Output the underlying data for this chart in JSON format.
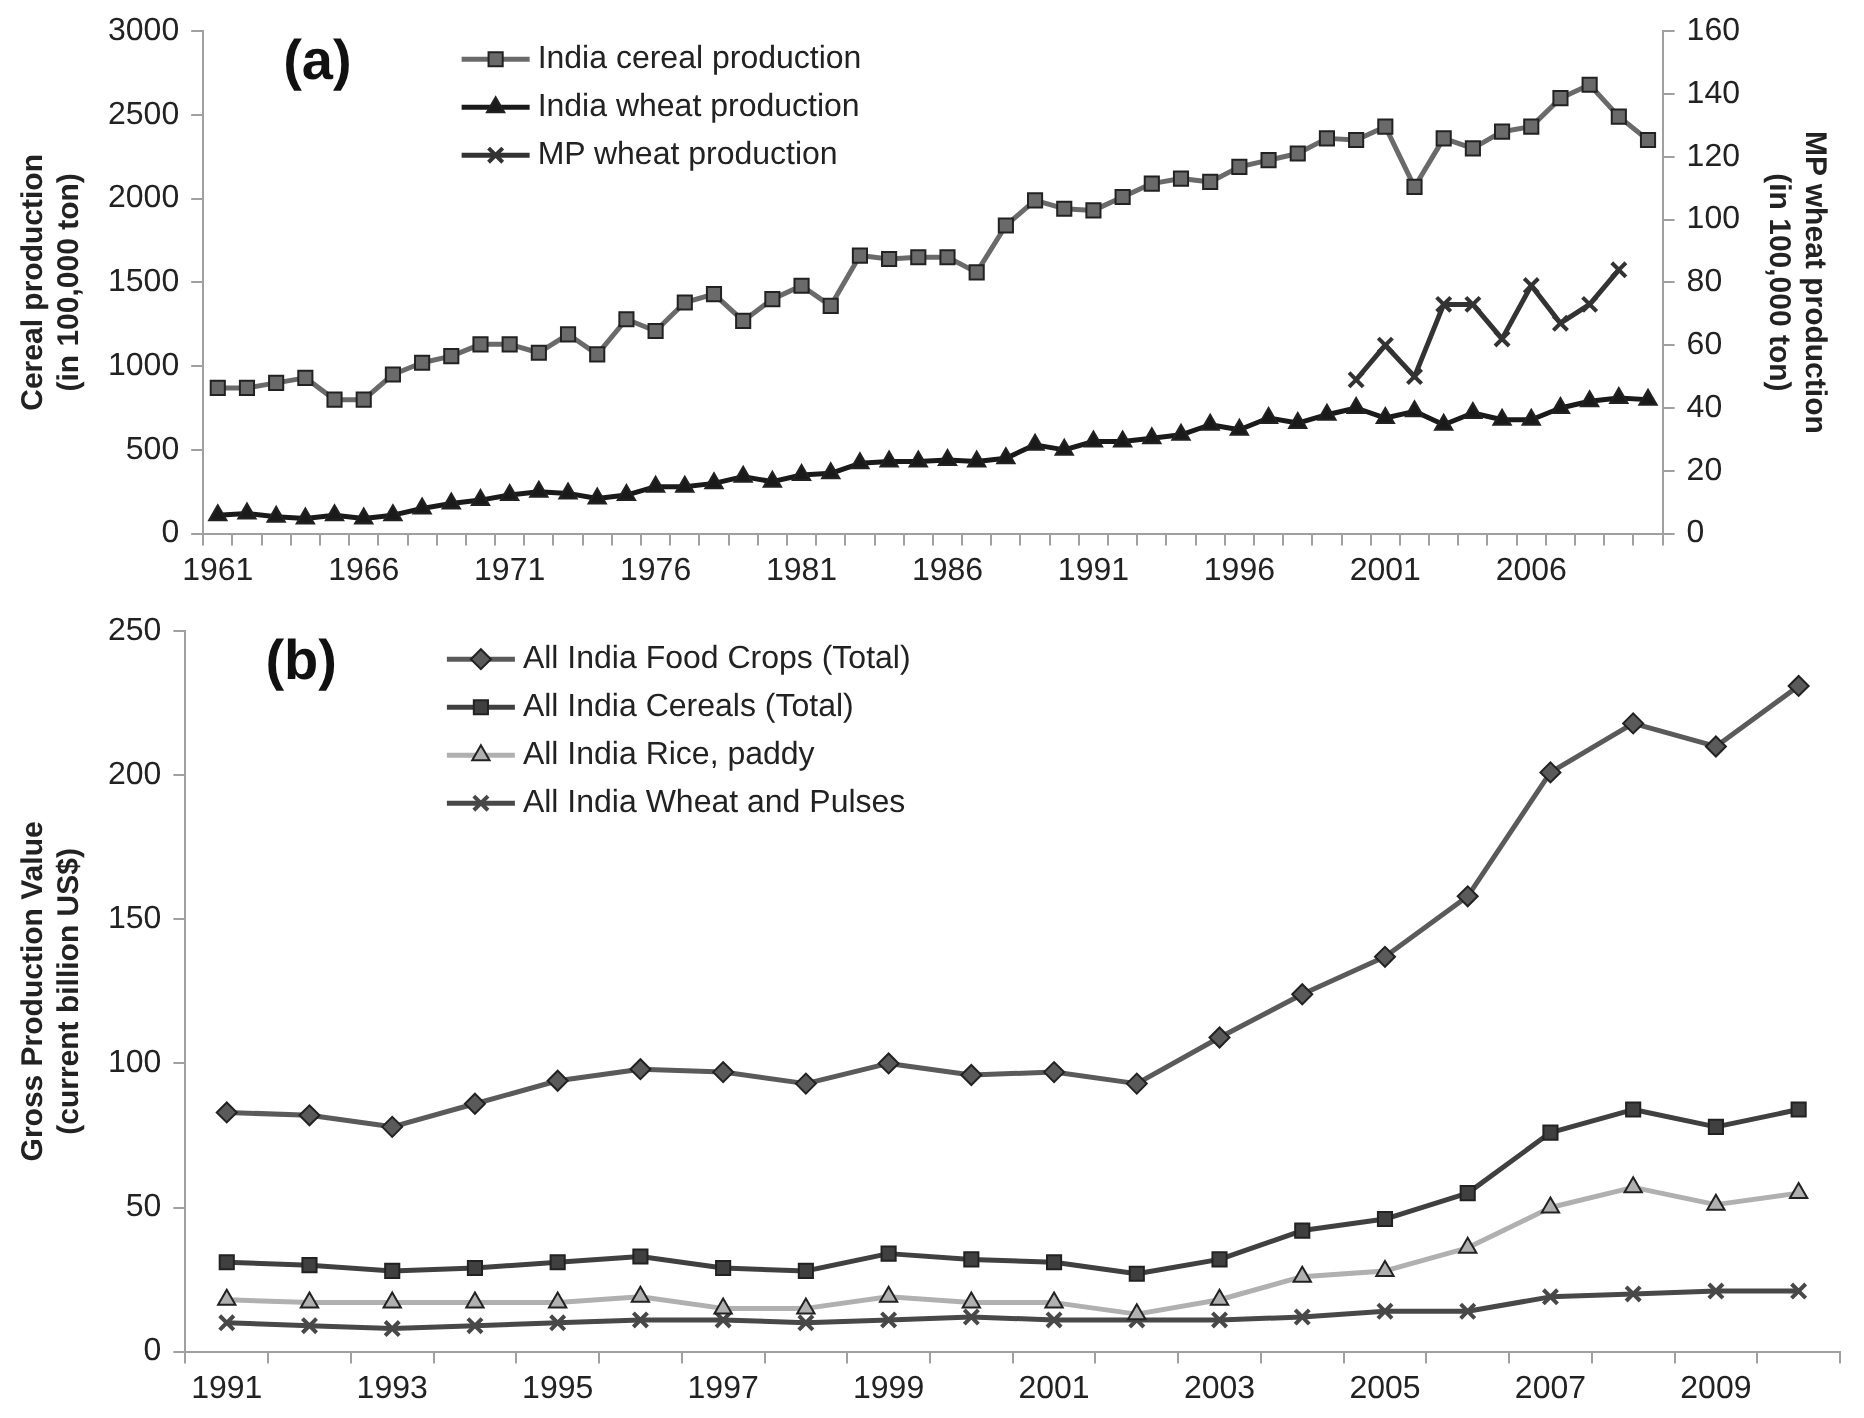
{
  "chart_data": [
    {
      "type": "line",
      "title": "(a)",
      "ylabel": "Cereal production\n(in 100,000 ton)",
      "y2label": "MP wheat production\n(in 100,000 ton)",
      "categories": [
        "1961",
        null,
        null,
        null,
        null,
        "1966",
        null,
        null,
        null,
        null,
        "1971",
        null,
        null,
        null,
        null,
        "1976",
        null,
        null,
        null,
        null,
        "1981",
        null,
        null,
        null,
        null,
        "1986",
        null,
        null,
        null,
        null,
        "1991",
        null,
        null,
        null,
        null,
        "1996",
        null,
        null,
        null,
        null,
        "2001",
        null,
        null,
        null,
        null,
        "2006",
        null,
        null,
        null,
        null
      ],
      "series": [
        {
          "name": "India cereal production",
          "color": "#6a6a6a",
          "marker": "square",
          "values": [
            870,
            870,
            900,
            930,
            800,
            800,
            950,
            1020,
            1060,
            1130,
            1130,
            1080,
            1190,
            1070,
            1280,
            1210,
            1380,
            1430,
            1270,
            1400,
            1480,
            1360,
            1660,
            1640,
            1650,
            1650,
            1560,
            1840,
            1990,
            1940,
            1930,
            2010,
            2090,
            2120,
            2100,
            2190,
            2230,
            2270,
            2360,
            2350,
            2430,
            2070,
            2360,
            2300,
            2400,
            2430,
            2600,
            2680,
            2490,
            2350
          ]
        },
        {
          "name": "India wheat production",
          "color": "#1a1a1a",
          "marker": "triangle",
          "values": [
            110,
            120,
            100,
            90,
            110,
            90,
            110,
            150,
            180,
            200,
            230,
            250,
            240,
            210,
            230,
            280,
            280,
            300,
            340,
            310,
            350,
            360,
            420,
            430,
            430,
            440,
            430,
            450,
            530,
            500,
            550,
            550,
            570,
            590,
            650,
            620,
            690,
            660,
            710,
            750,
            690,
            730,
            650,
            720,
            680,
            680,
            750,
            790,
            810,
            800
          ]
        },
        {
          "name": "MP wheat production",
          "color": "#333333",
          "marker": "cross",
          "axis": "y2",
          "values": [
            null,
            null,
            null,
            null,
            null,
            null,
            null,
            null,
            null,
            null,
            null,
            null,
            null,
            null,
            null,
            null,
            null,
            null,
            null,
            null,
            null,
            null,
            null,
            null,
            null,
            null,
            null,
            null,
            null,
            null,
            null,
            null,
            null,
            null,
            null,
            null,
            null,
            null,
            null,
            49,
            60,
            50,
            73,
            73,
            62,
            79,
            67,
            73,
            84,
            null
          ]
        }
      ],
      "ylim": [
        0,
        3000
      ],
      "yticks": [
        0,
        500,
        1000,
        1500,
        2000,
        2500,
        3000
      ],
      "y2lim": [
        0,
        160
      ],
      "y2ticks": [
        0,
        20,
        40,
        60,
        80,
        100,
        120,
        140,
        160
      ],
      "grid": false,
      "legend": "top left",
      "line_style": "solid"
    },
    {
      "type": "line",
      "title": "(b)",
      "ylabel": "Gross Production Value\n(current billion US$)",
      "categories": [
        "1991",
        null,
        "1993",
        null,
        "1995",
        null,
        "1997",
        null,
        "1999",
        null,
        "2001",
        null,
        "2003",
        null,
        "2005",
        null,
        "2007",
        null,
        "2009",
        null
      ],
      "series": [
        {
          "name": "All India Food Crops (Total)",
          "color": "#5a5a5a",
          "marker": "diamond",
          "values": [
            83,
            82,
            78,
            86,
            94,
            98,
            97,
            93,
            100,
            96,
            97,
            93,
            109,
            124,
            137,
            158,
            201,
            218,
            210,
            231
          ]
        },
        {
          "name": "All India Cereals (Total)",
          "color": "#404040",
          "marker": "square",
          "values": [
            31,
            30,
            28,
            29,
            31,
            33,
            29,
            28,
            34,
            32,
            31,
            27,
            32,
            42,
            46,
            55,
            76,
            84,
            78,
            84
          ]
        },
        {
          "name": "All India Rice, paddy",
          "color": "#b0b0b0",
          "marker": "triangle",
          "values": [
            18,
            17,
            17,
            17,
            17,
            19,
            15,
            15,
            19,
            17,
            17,
            13,
            18,
            26,
            28,
            36,
            50,
            57,
            51,
            55
          ]
        },
        {
          "name": "All India Wheat and Pulses",
          "color": "#484848",
          "marker": "cross",
          "values": [
            10,
            9,
            8,
            9,
            10,
            11,
            11,
            10,
            11,
            12,
            11,
            11,
            11,
            12,
            14,
            14,
            19,
            20,
            21,
            21
          ]
        }
      ],
      "ylim": [
        0,
        250
      ],
      "yticks": [
        0,
        50,
        100,
        150,
        200,
        250
      ],
      "grid": false,
      "legend": "top left",
      "line_style": "solid"
    }
  ]
}
